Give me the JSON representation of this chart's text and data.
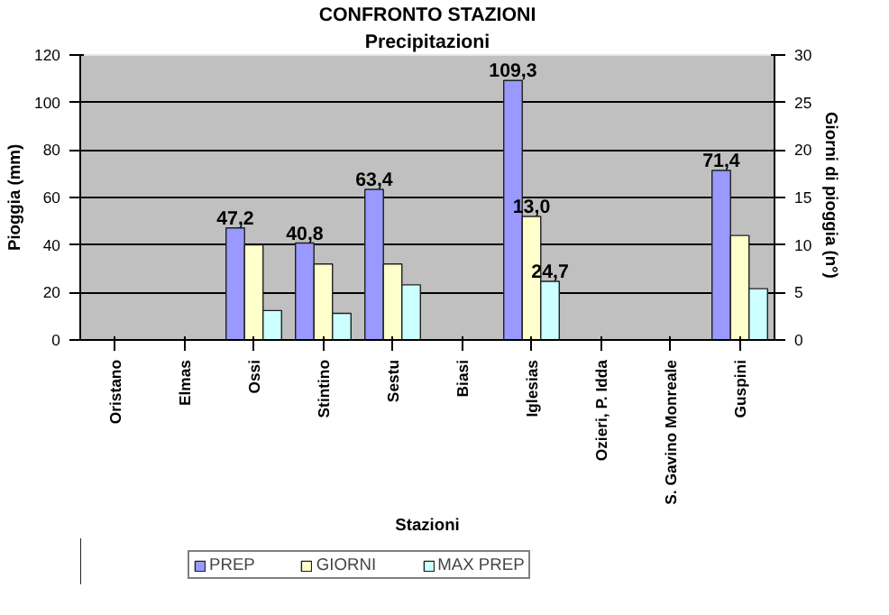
{
  "chart_data": {
    "type": "bar",
    "title": "CONFRONTO STAZIONI",
    "subtitle": "Precipitazioni",
    "xlabel": "Stazioni",
    "ylabel": "Pioggia (mm)",
    "y2label": "Giorni di pioggia  (n°)",
    "categories": [
      "Oristano",
      "Elmas",
      "Ossi",
      "Stintino",
      "Sestu",
      "Biasi",
      "Iglesias",
      "Ozieri, P. Idda",
      "S. Gavino Monreale",
      "Guspini"
    ],
    "series": [
      {
        "name": "PREP",
        "color": "#9999ff",
        "values": [
          null,
          null,
          47.2,
          40.8,
          63.4,
          null,
          109.3,
          null,
          null,
          71.4
        ],
        "value_labels": [
          null,
          null,
          "47,2",
          "40,8",
          "63,4",
          null,
          "109,3",
          null,
          null,
          "71,4"
        ]
      },
      {
        "name": "GIORNI",
        "color": "#ffffcc",
        "axis": "y2",
        "values": [
          null,
          null,
          10,
          8,
          8,
          null,
          13.0,
          null,
          null,
          11
        ],
        "value_labels": [
          null,
          null,
          null,
          null,
          null,
          null,
          "13,0",
          null,
          null,
          null
        ]
      },
      {
        "name": "MAX PREP",
        "color": "#ccffff",
        "values": [
          null,
          null,
          12.4,
          11.2,
          23.2,
          null,
          24.7,
          null,
          null,
          21.6
        ],
        "value_labels": [
          null,
          null,
          null,
          null,
          null,
          null,
          "24,7",
          null,
          null,
          null
        ]
      }
    ],
    "ylim": [
      0,
      120
    ],
    "yticks": [
      0,
      20,
      40,
      60,
      80,
      100,
      120
    ],
    "y2lim": [
      0,
      30
    ],
    "y2ticks": [
      0,
      5,
      10,
      15,
      20,
      25,
      30
    ],
    "grid": "y",
    "legend": "bottom"
  }
}
